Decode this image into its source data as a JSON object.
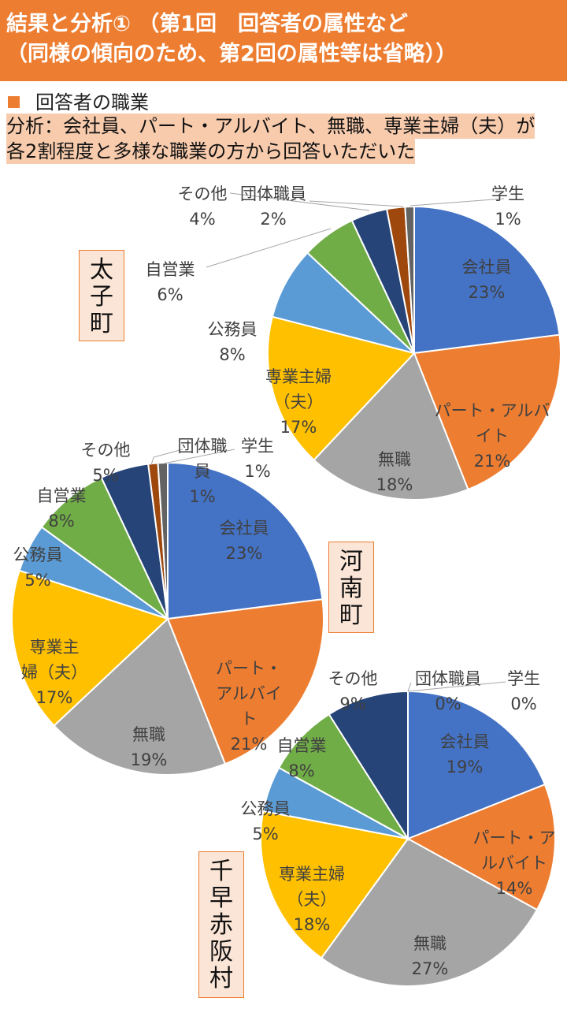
{
  "header": {
    "line1": "結果と分析① （第1回　回答者の属性など",
    "line2": "（同様の傾向のため、第2回の属性等は省略））"
  },
  "section_title": "回答者の職業",
  "analysis": {
    "line1": "分析：会社員、パート・アルバイト、無職、専業主婦（夫）が",
    "line2": "各2割程度と多様な職業の方から回答いただいた"
  },
  "colors": {
    "header_bg": "#ED7D31",
    "highlight": "#F8CBAD",
    "region_box": "#FBE5D6"
  },
  "chart_data": [
    {
      "type": "pie",
      "title": "太子町",
      "categories": [
        "会社員",
        "パート・アルバイト",
        "無職",
        "専業主婦（夫）",
        "公務員",
        "自営業",
        "その他",
        "団体職員",
        "学生"
      ],
      "values": [
        23,
        21,
        18,
        17,
        8,
        6,
        4,
        2,
        1
      ],
      "colors": [
        "#4472C4",
        "#ED7D31",
        "#A5A5A5",
        "#FFC000",
        "#5B9BD5",
        "#70AD47",
        "#264478",
        "#9E480E",
        "#636363"
      ],
      "labels": [
        [
          "会社員",
          "23%"
        ],
        [
          "パート・アルバ",
          "イト",
          "21%"
        ],
        [
          "無職",
          "18%"
        ],
        [
          "専業主婦",
          "（夫）",
          "17%"
        ],
        [
          "公務員",
          "8%"
        ],
        [
          "自営業",
          "6%"
        ],
        [
          "その他",
          "4%"
        ],
        [
          "団体職員",
          "2%"
        ],
        [
          "学生",
          "1%"
        ]
      ]
    },
    {
      "type": "pie",
      "title": "河南町",
      "categories": [
        "会社員",
        "パート・アルバイト",
        "無職",
        "専業主婦（夫）",
        "公務員",
        "自営業",
        "その他",
        "団体職員",
        "学生"
      ],
      "values": [
        23,
        21,
        19,
        17,
        5,
        8,
        5,
        1,
        1
      ],
      "colors": [
        "#4472C4",
        "#ED7D31",
        "#A5A5A5",
        "#FFC000",
        "#5B9BD5",
        "#70AD47",
        "#264478",
        "#9E480E",
        "#636363"
      ],
      "labels": [
        [
          "会社員",
          "23%"
        ],
        [
          "パート・",
          "アルバイ",
          "ト",
          "21%"
        ],
        [
          "無職",
          "19%"
        ],
        [
          "専業主",
          "婦（夫）",
          "17%"
        ],
        [
          "公務員",
          "5%"
        ],
        [
          "自営業",
          "8%"
        ],
        [
          "その他",
          "5%"
        ],
        [
          "団体職",
          "員",
          "1%"
        ],
        [
          "学生",
          "1%"
        ]
      ]
    },
    {
      "type": "pie",
      "title": "千早赤阪村",
      "categories": [
        "会社員",
        "パート・アルバイト",
        "無職",
        "専業主婦（夫）",
        "公務員",
        "自営業",
        "その他",
        "団体職員",
        "学生"
      ],
      "values": [
        19,
        14,
        27,
        18,
        5,
        8,
        9,
        0,
        0
      ],
      "colors": [
        "#4472C4",
        "#ED7D31",
        "#A5A5A5",
        "#FFC000",
        "#5B9BD5",
        "#70AD47",
        "#264478",
        "#9E480E",
        "#636363"
      ],
      "labels": [
        [
          "会社員",
          "19%"
        ],
        [
          "パート・ア",
          "ルバイト",
          "14%"
        ],
        [
          "無職",
          "27%"
        ],
        [
          "専業主婦",
          "（夫）",
          "18%"
        ],
        [
          "公務員",
          "5%"
        ],
        [
          "自営業",
          "8%"
        ],
        [
          "その他",
          "9%"
        ],
        [
          "団体職員",
          "0%"
        ],
        [
          "学生",
          "0%"
        ]
      ]
    }
  ]
}
